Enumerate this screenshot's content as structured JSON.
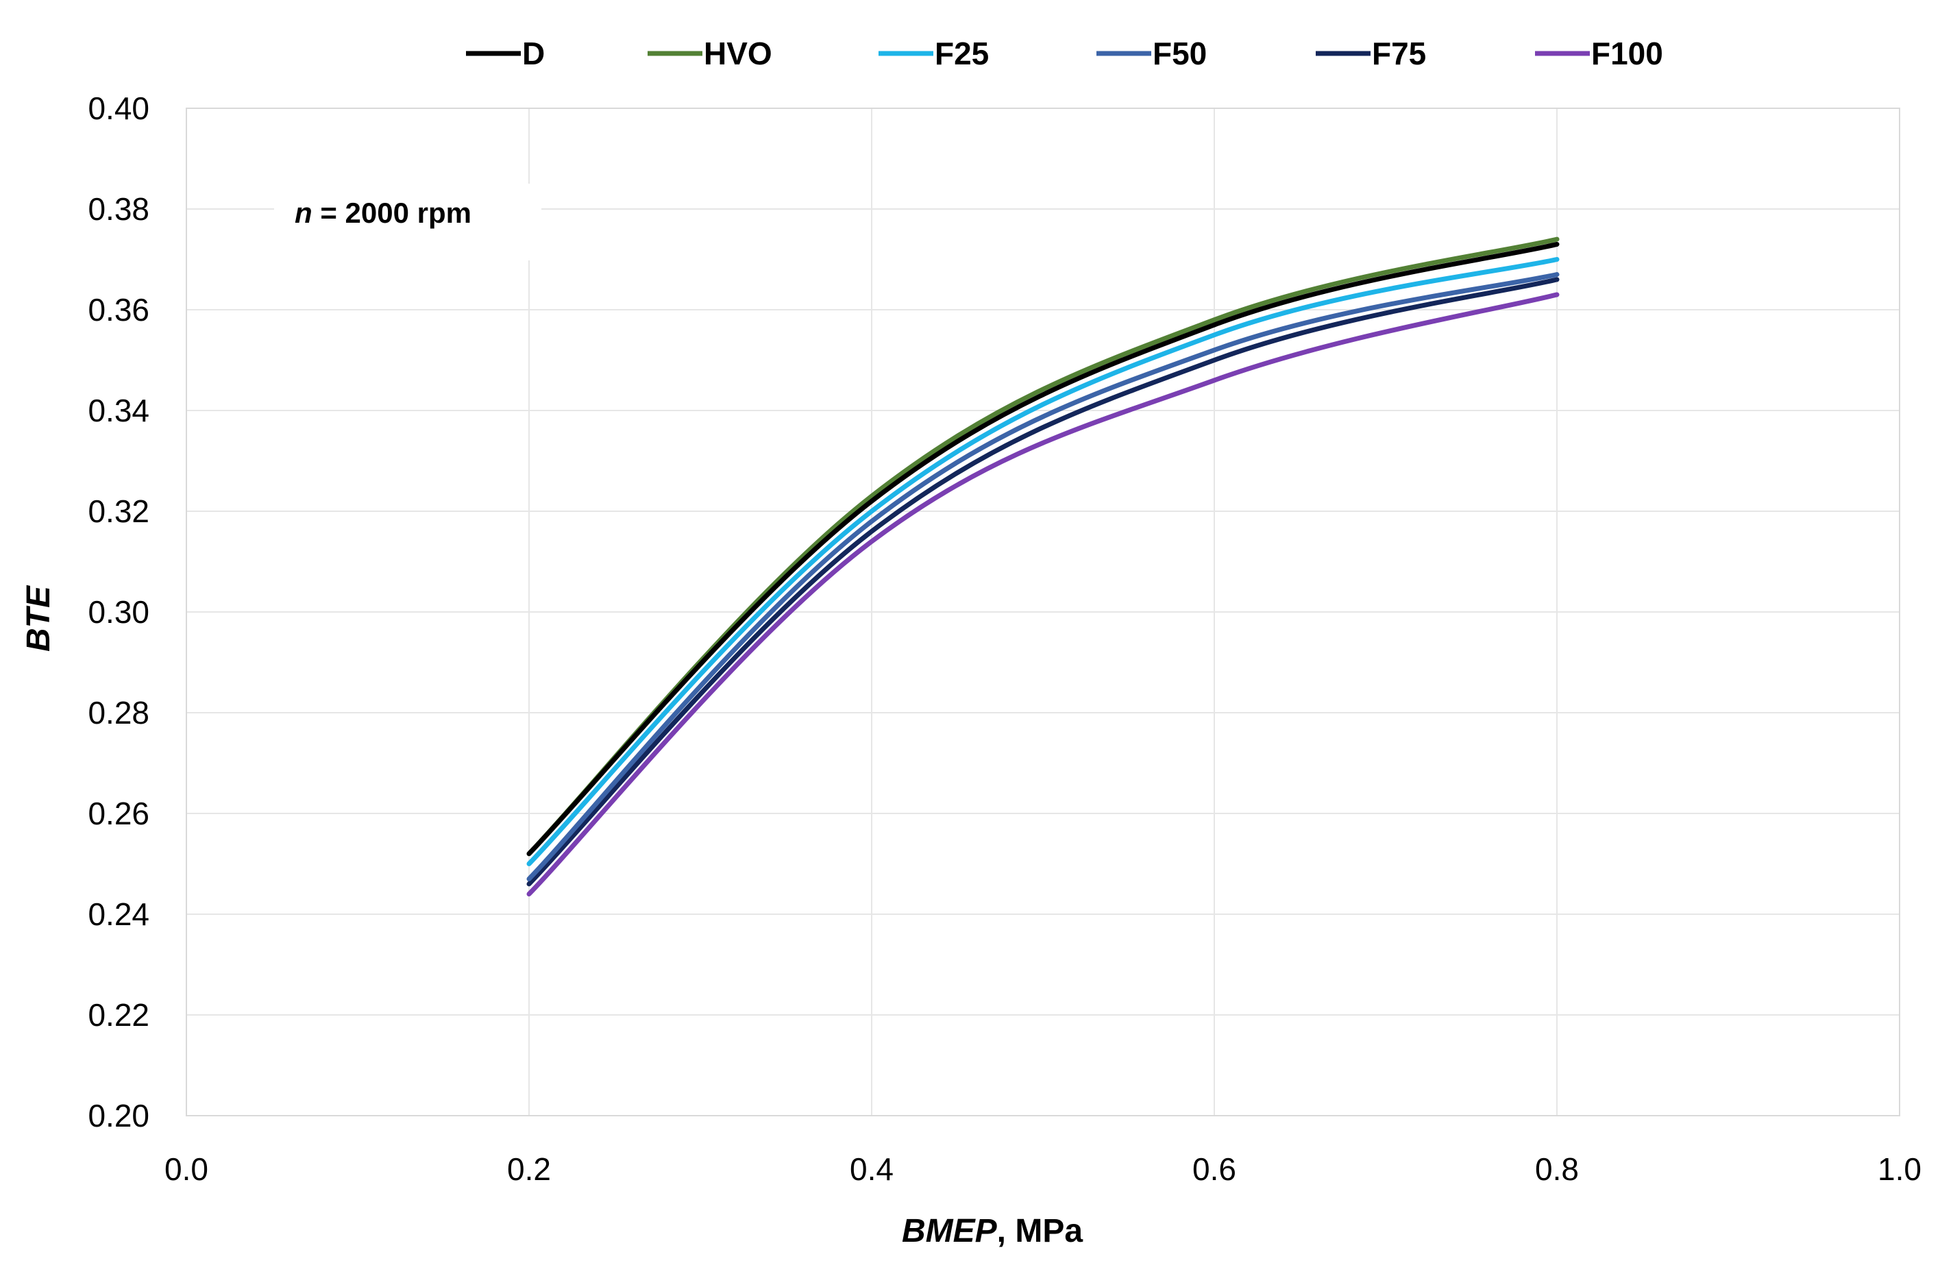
{
  "chart_data": {
    "type": "line",
    "title": "",
    "xlabel": {
      "italic": "BMEP",
      "rest": ", MPa"
    },
    "ylabel": "BTE",
    "xlim": [
      0.0,
      1.0
    ],
    "ylim": [
      0.2,
      0.4
    ],
    "xticks": [
      "0.0",
      "0.2",
      "0.4",
      "0.6",
      "0.8",
      "1.0"
    ],
    "yticks": [
      "0.20",
      "0.22",
      "0.24",
      "0.26",
      "0.28",
      "0.30",
      "0.32",
      "0.34",
      "0.36",
      "0.38",
      "0.40"
    ],
    "grid": true,
    "legend_position": "top",
    "annotation": {
      "italic": "n",
      "rest": " = 2000 rpm"
    },
    "x": [
      0.2,
      0.4,
      0.6,
      0.8
    ],
    "series": [
      {
        "name": "D",
        "color": "#000000",
        "values": [
          0.252,
          0.322,
          0.357,
          0.373
        ]
      },
      {
        "name": "HVO",
        "color": "#538135",
        "values": [
          0.252,
          0.323,
          0.358,
          0.374
        ]
      },
      {
        "name": "F25",
        "color": "#1eb4e8",
        "values": [
          0.25,
          0.32,
          0.355,
          0.37
        ]
      },
      {
        "name": "F50",
        "color": "#3c64a8",
        "values": [
          0.247,
          0.318,
          0.352,
          0.367
        ]
      },
      {
        "name": "F75",
        "color": "#13265a",
        "values": [
          0.246,
          0.316,
          0.35,
          0.366
        ]
      },
      {
        "name": "F100",
        "color": "#7a3fb2",
        "values": [
          0.244,
          0.314,
          0.346,
          0.363
        ]
      }
    ]
  }
}
